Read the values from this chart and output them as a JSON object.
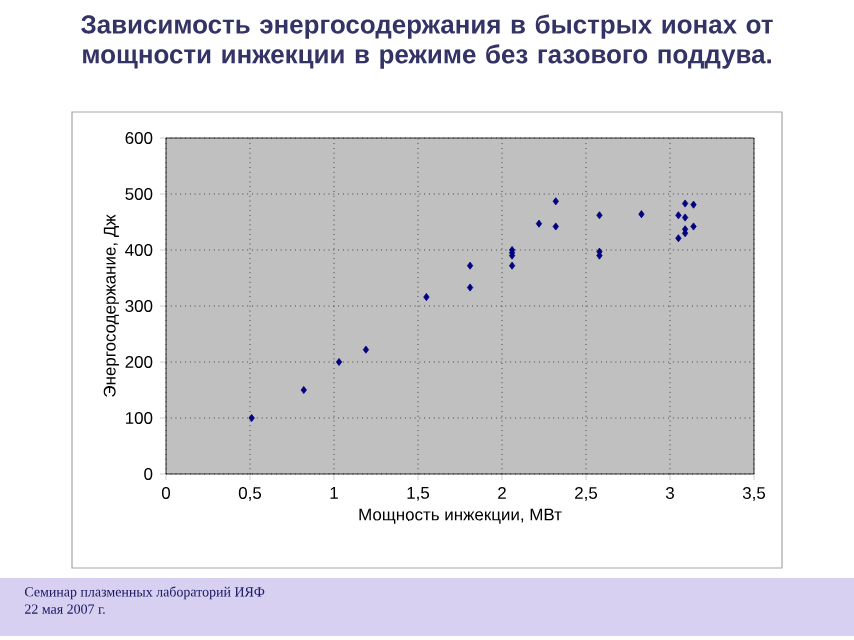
{
  "chart_data": {
    "type": "scatter",
    "title": "Зависимость энергосодержания в быстрых ионах от мощности инжекции в режиме без газового поддува.",
    "xlabel": "Мощность инжекции, МВт",
    "ylabel": "Энергосодержание, Дж",
    "annotations": [
      "Семинар плазменных лабораторий ИЯФ",
      "22 мая 2007 г."
    ],
    "x": [
      0.51,
      0.82,
      1.03,
      1.19,
      1.55,
      1.81,
      1.81,
      2.06,
      2.06,
      2.06,
      2.06,
      2.22,
      2.32,
      2.32,
      2.58,
      2.58,
      2.58,
      2.83,
      3.05,
      3.05,
      3.09,
      3.09,
      3.09,
      3.09,
      3.14,
      3.14
    ],
    "values": [
      100,
      150,
      200,
      222,
      316,
      333,
      372,
      372,
      390,
      395,
      400,
      447,
      487,
      442,
      462,
      397,
      390,
      464,
      462,
      421,
      483,
      458,
      437,
      430,
      481,
      442
    ],
    "color": "#000080",
    "marker": "diamond",
    "grid": true,
    "xlim": [
      0,
      3.5
    ],
    "ylim": [
      0,
      600
    ],
    "xticks": [
      0,
      {
        "value": 0.5,
        "label": "0,5"
      },
      1,
      {
        "value": 1.5,
        "label": "1,5"
      },
      2,
      {
        "value": 2.5,
        "label": "2,5"
      },
      3,
      {
        "value": 3.5,
        "label": "3,5"
      }
    ],
    "yticks": [
      0,
      100,
      200,
      300,
      400,
      500,
      600
    ]
  }
}
